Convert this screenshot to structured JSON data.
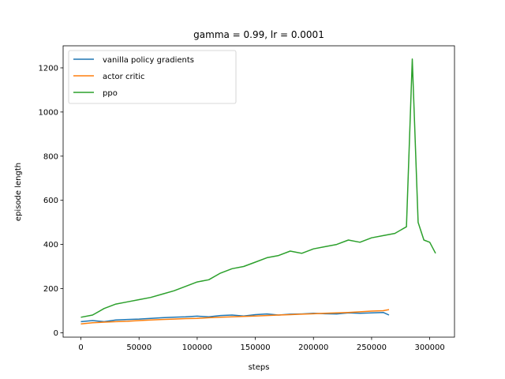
{
  "chart_data": {
    "type": "line",
    "title": "gamma = 0.99, lr = 0.0001",
    "xlabel": "steps",
    "ylabel": "episode length",
    "xlim": [
      -15300,
      321300
    ],
    "ylim": [
      -20,
      1300
    ],
    "xticks": [
      0,
      50000,
      100000,
      150000,
      200000,
      250000,
      300000
    ],
    "yticks": [
      0,
      200,
      400,
      600,
      800,
      1000,
      1200
    ],
    "xtick_labels": [
      "0",
      "50000",
      "100000",
      "150000",
      "200000",
      "250000",
      "300000"
    ],
    "ytick_labels": [
      "0",
      "200",
      "400",
      "600",
      "800",
      "1000",
      "1200"
    ],
    "grid": false,
    "legend_position": "top-left",
    "series": [
      {
        "name": "vanilla policy gradients",
        "color": "#1f77b4",
        "x": [
          0,
          10000,
          20000,
          30000,
          40000,
          50000,
          60000,
          70000,
          80000,
          90000,
          100000,
          110000,
          120000,
          130000,
          140000,
          150000,
          160000,
          170000,
          180000,
          190000,
          200000,
          210000,
          220000,
          230000,
          240000,
          250000,
          260000,
          265000
        ],
        "y": [
          50,
          55,
          50,
          58,
          60,
          62,
          65,
          68,
          70,
          72,
          75,
          72,
          78,
          80,
          76,
          82,
          85,
          80,
          84,
          85,
          88,
          86,
          85,
          90,
          88,
          90,
          92,
          80
        ]
      },
      {
        "name": "actor critic",
        "color": "#ff7f0e",
        "x": [
          0,
          10000,
          20000,
          30000,
          40000,
          50000,
          60000,
          70000,
          80000,
          90000,
          100000,
          110000,
          120000,
          130000,
          140000,
          150000,
          160000,
          170000,
          180000,
          190000,
          200000,
          210000,
          220000,
          230000,
          240000,
          250000,
          260000,
          265000
        ],
        "y": [
          40,
          45,
          48,
          50,
          52,
          55,
          58,
          60,
          62,
          64,
          65,
          68,
          70,
          72,
          74,
          76,
          78,
          80,
          82,
          84,
          86,
          88,
          90,
          92,
          95,
          98,
          100,
          105
        ]
      },
      {
        "name": "ppo",
        "color": "#2ca02c",
        "x": [
          0,
          10000,
          20000,
          30000,
          40000,
          50000,
          60000,
          70000,
          80000,
          90000,
          100000,
          110000,
          120000,
          130000,
          140000,
          150000,
          160000,
          170000,
          180000,
          190000,
          200000,
          210000,
          220000,
          230000,
          240000,
          250000,
          260000,
          270000,
          280000,
          285000,
          290000,
          295000,
          300000,
          305000
        ],
        "y": [
          70,
          80,
          110,
          130,
          140,
          150,
          160,
          175,
          190,
          210,
          230,
          240,
          270,
          290,
          300,
          320,
          340,
          350,
          370,
          360,
          380,
          390,
          400,
          420,
          410,
          430,
          440,
          450,
          480,
          1240,
          500,
          420,
          410,
          360
        ]
      }
    ]
  }
}
